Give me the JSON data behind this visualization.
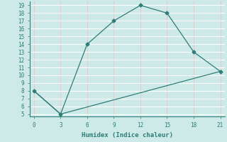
{
  "xlabel": "Humidex (Indice chaleur)",
  "line1_x": [
    0,
    3,
    6,
    9,
    12,
    15,
    18,
    21
  ],
  "line1_y": [
    8,
    5,
    14,
    17,
    19,
    18,
    13,
    10.5
  ],
  "line2_x": [
    0,
    3,
    21
  ],
  "line2_y": [
    8,
    5,
    10.5
  ],
  "line_color": "#2d7d78",
  "marker": "D",
  "marker_size": 2.5,
  "xlim": [
    -0.5,
    21.5
  ],
  "ylim": [
    4.7,
    19.5
  ],
  "xticks": [
    0,
    3,
    6,
    9,
    12,
    15,
    18,
    21
  ],
  "yticks": [
    5,
    6,
    7,
    8,
    9,
    10,
    11,
    12,
    13,
    14,
    15,
    16,
    17,
    18,
    19
  ],
  "bg_color": "#ceeae8",
  "hgrid_color": "#ffffff",
  "vgrid_color": "#e8c8c8",
  "font_family": "monospace",
  "tick_fontsize": 5.5,
  "xlabel_fontsize": 6.5
}
